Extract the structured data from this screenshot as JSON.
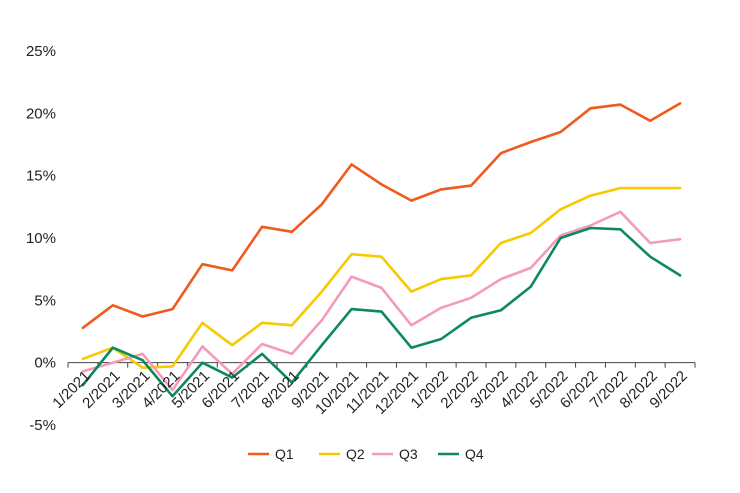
{
  "chart_data": {
    "type": "line",
    "title": "",
    "xlabel": "",
    "ylabel": "",
    "x": [
      "1/2021",
      "2/2021",
      "3/2021",
      "4/2021",
      "5/2021",
      "6/2021",
      "7/2021",
      "8/2021",
      "9/2021",
      "10/2021",
      "11/2021",
      "12/2021",
      "1/2022",
      "2/2022",
      "3/2022",
      "4/2022",
      "5/2022",
      "6/2022",
      "7/2022",
      "8/2022",
      "9/2022"
    ],
    "ylim": [
      -5,
      25
    ],
    "yticks": [
      -5,
      0,
      5,
      10,
      15,
      20,
      25
    ],
    "ytick_labels": [
      "-5%",
      "0%",
      "5%",
      "10%",
      "15%",
      "20%",
      "25%"
    ],
    "grid": false,
    "legend_position": "bottom",
    "series": [
      {
        "name": "Q1",
        "color": "#f05a1e",
        "values": [
          2.8,
          4.6,
          3.7,
          4.3,
          7.9,
          7.4,
          10.9,
          10.5,
          12.7,
          15.9,
          14.3,
          13.0,
          13.9,
          14.2,
          16.8,
          17.7,
          18.5,
          20.4,
          20.7,
          19.4,
          20.8
        ]
      },
      {
        "name": "Q2",
        "color": "#f7c900",
        "values": [
          0.3,
          1.2,
          -0.4,
          -0.3,
          3.2,
          1.4,
          3.2,
          3.0,
          5.7,
          8.7,
          8.5,
          5.7,
          6.7,
          7.0,
          9.6,
          10.4,
          12.3,
          13.4,
          14.0,
          14.0,
          14.0
        ]
      },
      {
        "name": "Q3",
        "color": "#f49bbb",
        "values": [
          -0.7,
          0.0,
          0.7,
          -2.2,
          1.3,
          -0.9,
          1.5,
          0.7,
          3.4,
          6.9,
          6.0,
          3.0,
          4.4,
          5.2,
          6.7,
          7.6,
          10.2,
          11.0,
          12.1,
          9.6,
          9.9
        ]
      },
      {
        "name": "Q4",
        "color": "#0d8a5b",
        "values": [
          -1.8,
          1.2,
          0.2,
          -2.7,
          0.0,
          -1.2,
          0.7,
          -1.6,
          1.4,
          4.3,
          4.1,
          1.2,
          1.9,
          3.6,
          4.2,
          6.1,
          10.0,
          10.8,
          10.7,
          8.5,
          7.0
        ]
      }
    ]
  }
}
